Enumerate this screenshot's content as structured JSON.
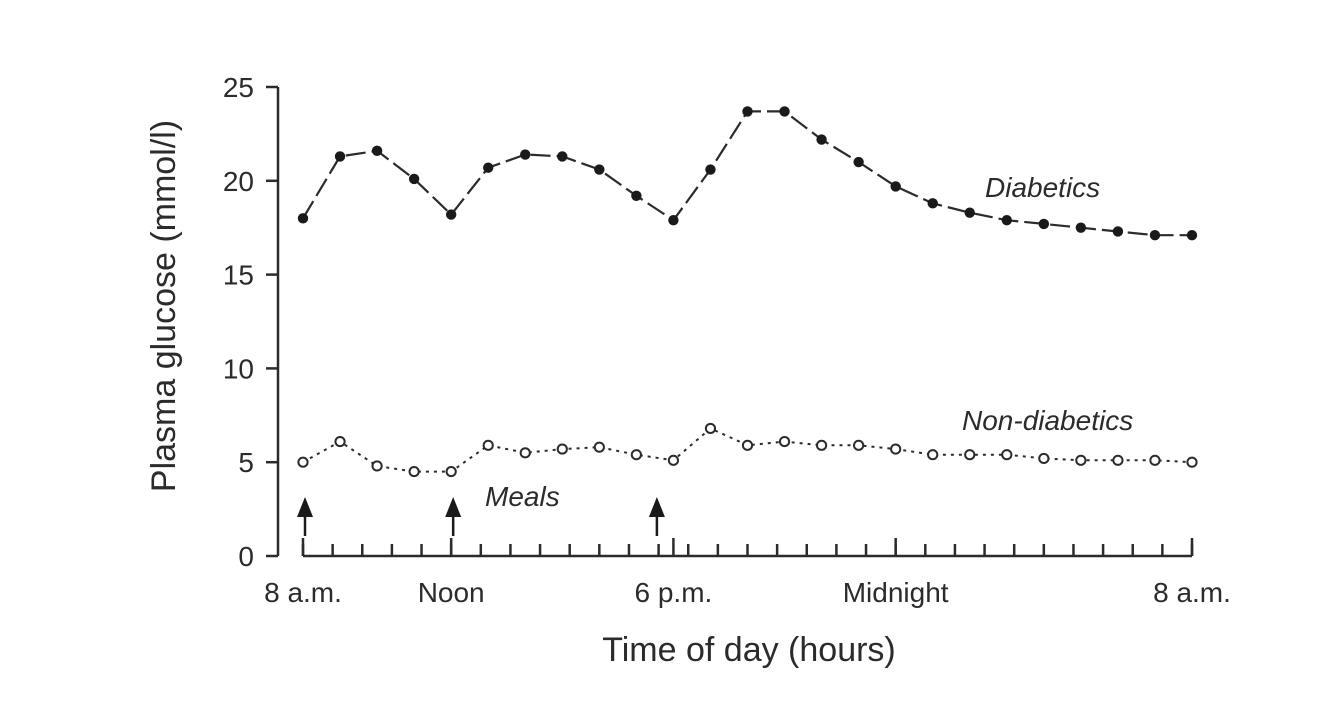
{
  "chart_data": {
    "type": "line",
    "xlabel": "Time of day (hours)",
    "ylabel": "Plasma glucose (mmol/l)",
    "ylim": [
      0,
      25
    ],
    "xlim": [
      0,
      24
    ],
    "yticks": [
      0,
      5,
      10,
      15,
      20,
      25
    ],
    "xtick_labels": [
      {
        "x": 0,
        "label": "8 a.m."
      },
      {
        "x": 4,
        "label": "Noon"
      },
      {
        "x": 10,
        "label": "6 p.m."
      },
      {
        "x": 16,
        "label": "Midnight"
      },
      {
        "x": 24,
        "label": "8 a.m."
      }
    ],
    "minor_tick_step": 0.8,
    "x_hours": [
      0,
      1,
      2,
      3,
      4,
      5,
      6,
      7,
      8,
      9,
      10,
      11,
      12,
      13,
      14,
      15,
      16,
      17,
      18,
      19,
      20,
      21,
      22,
      23,
      24
    ],
    "series": [
      {
        "name": "Diabetics",
        "marker": "filled",
        "values": [
          18.0,
          21.3,
          21.6,
          20.1,
          18.2,
          20.7,
          21.4,
          21.3,
          20.6,
          19.2,
          17.9,
          20.6,
          23.7,
          23.7,
          22.2,
          21.0,
          19.7,
          18.8,
          18.3,
          17.9,
          17.7,
          17.5,
          17.3,
          17.1,
          17.1
        ]
      },
      {
        "name": "Non-diabetics",
        "marker": "open",
        "values": [
          5.0,
          6.1,
          4.8,
          4.5,
          4.5,
          5.9,
          5.5,
          5.7,
          5.8,
          5.4,
          5.1,
          6.8,
          5.9,
          6.1,
          5.9,
          5.9,
          5.7,
          5.4,
          5.4,
          5.4,
          5.2,
          5.1,
          5.1,
          5.1,
          5.0
        ]
      }
    ],
    "annotations": {
      "meals_label": "Meals",
      "meal_times": [
        0,
        4,
        9.5
      ]
    }
  }
}
